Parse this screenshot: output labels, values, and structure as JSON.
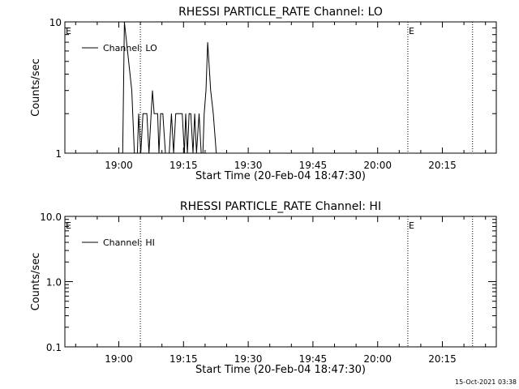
{
  "footer_timestamp": "15-Oct-2021 03:38",
  "chart_data": [
    {
      "type": "line",
      "title": "RHESSI PARTICLE_RATE Channel: LO",
      "xlabel": "Start Time (20-Feb-04 18:47:30)",
      "ylabel": "Counts/sec",
      "yscale": "log",
      "ylim": [
        1,
        10
      ],
      "y_ticks": [
        {
          "value": 1,
          "label": "1"
        },
        {
          "value": 10,
          "label": "10"
        }
      ],
      "x_ticks": [
        "19:00",
        "19:15",
        "19:30",
        "19:45",
        "20:00",
        "20:15"
      ],
      "x_tick_minutes": [
        12.5,
        27.5,
        42.5,
        57.5,
        72.5,
        87.5
      ],
      "xlim_minutes": [
        0,
        100
      ],
      "legend": {
        "label": "Channel: LO",
        "position": "top-left"
      },
      "markers": [
        {
          "label": "E",
          "x_minutes": 0
        },
        {
          "label": "E",
          "x_minutes": 79.5
        }
      ],
      "vertical_lines_minutes": [
        17.5,
        79.5,
        94.5
      ],
      "series": [
        {
          "x": [
            0,
            12.5,
            13.4,
            13.8,
            15.5,
            16.1,
            16.5,
            16.8,
            17.1,
            17.6,
            18.1,
            18.5,
            19.0,
            19.5,
            20.0,
            20.3,
            20.7,
            21.1,
            21.5,
            21.8,
            22.2,
            22.7,
            23.3,
            23.8,
            24.2,
            24.7,
            25.2,
            25.7,
            26.1,
            26.4,
            26.8,
            27.2,
            27.7,
            28.0,
            28.4,
            28.8,
            29.2,
            29.7,
            30.1,
            30.5,
            31.1,
            31.6,
            32.0,
            32.3,
            32.7,
            33.1,
            33.8,
            34.4,
            35.1,
            35.5,
            100
          ],
          "y": [
            1,
            1,
            1,
            10,
            3,
            1,
            1,
            1,
            2,
            1,
            2,
            2,
            2,
            1,
            2,
            3,
            2,
            2,
            2,
            1,
            2,
            2,
            1,
            1,
            1,
            2,
            1,
            2,
            2,
            2,
            2,
            2,
            1,
            2,
            1,
            2,
            2,
            1,
            2,
            1,
            2,
            1,
            1,
            2,
            3,
            7,
            3,
            2,
            1,
            1,
            1
          ]
        }
      ]
    },
    {
      "type": "line",
      "title": "RHESSI PARTICLE_RATE Channel: HI",
      "xlabel": "Start Time (20-Feb-04 18:47:30)",
      "ylabel": "Counts/sec",
      "yscale": "log",
      "ylim": [
        0.1,
        10
      ],
      "y_ticks": [
        {
          "value": 0.1,
          "label": "0.1"
        },
        {
          "value": 1,
          "label": "1.0"
        },
        {
          "value": 10,
          "label": "10.0"
        }
      ],
      "x_ticks": [
        "19:00",
        "19:15",
        "19:30",
        "19:45",
        "20:00",
        "20:15"
      ],
      "x_tick_minutes": [
        12.5,
        27.5,
        42.5,
        57.5,
        72.5,
        87.5
      ],
      "xlim_minutes": [
        0,
        100
      ],
      "legend": {
        "label": "Channel: HI",
        "position": "top-left"
      },
      "markers": [
        {
          "label": "E",
          "x_minutes": 0
        },
        {
          "label": "E",
          "x_minutes": 79.5
        }
      ],
      "vertical_lines_minutes": [
        17.5,
        79.5,
        94.5
      ],
      "series": []
    }
  ]
}
